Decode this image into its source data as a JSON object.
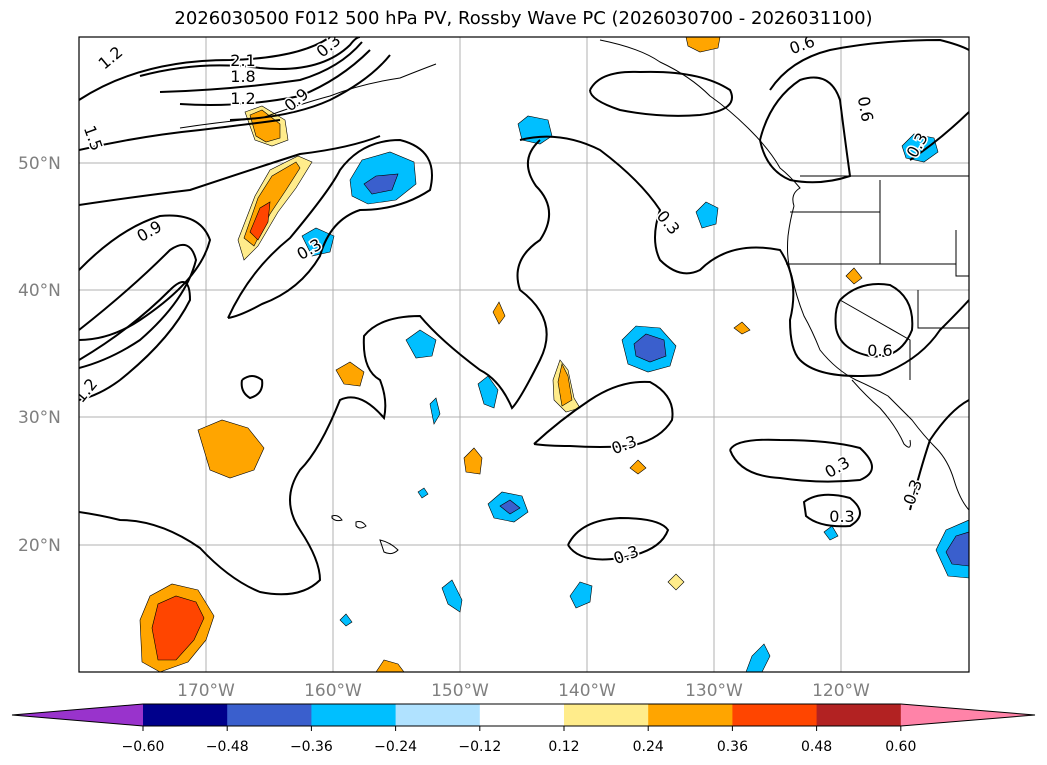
{
  "title": "2026030500 F012 500 hPa PV, Rossby Wave PC (2026030700 - 2026031100)",
  "map": {
    "lat_labels": [
      "50°N",
      "40°N",
      "30°N",
      "20°N"
    ],
    "lon_labels": [
      "170°W",
      "160°W",
      "150°W",
      "140°W",
      "130°W",
      "120°W"
    ],
    "contour_labels": [
      "1.2",
      "2.1",
      "1.8",
      "1.2",
      "0.9",
      "1.5",
      "0.9",
      "0.3",
      "0.3",
      "0.6",
      "0.6",
      "0.3",
      "0.6",
      "1.2",
      "0.3",
      "0.3",
      "0.3",
      "0.3",
      "0.3",
      "0.3"
    ]
  },
  "colorbar": {
    "ticks": [
      "−0.60",
      "−0.48",
      "−0.36",
      "−0.24",
      "−0.12",
      "0.12",
      "0.24",
      "0.36",
      "0.48",
      "0.60"
    ],
    "colors": [
      "#9933cc",
      "#00008b",
      "#3a5fcd",
      "#00bfff",
      "#b0e2ff",
      "#ffffff",
      "#ffec8b",
      "#ffa500",
      "#ff4500",
      "#b22222",
      "#ff83a8"
    ]
  }
}
